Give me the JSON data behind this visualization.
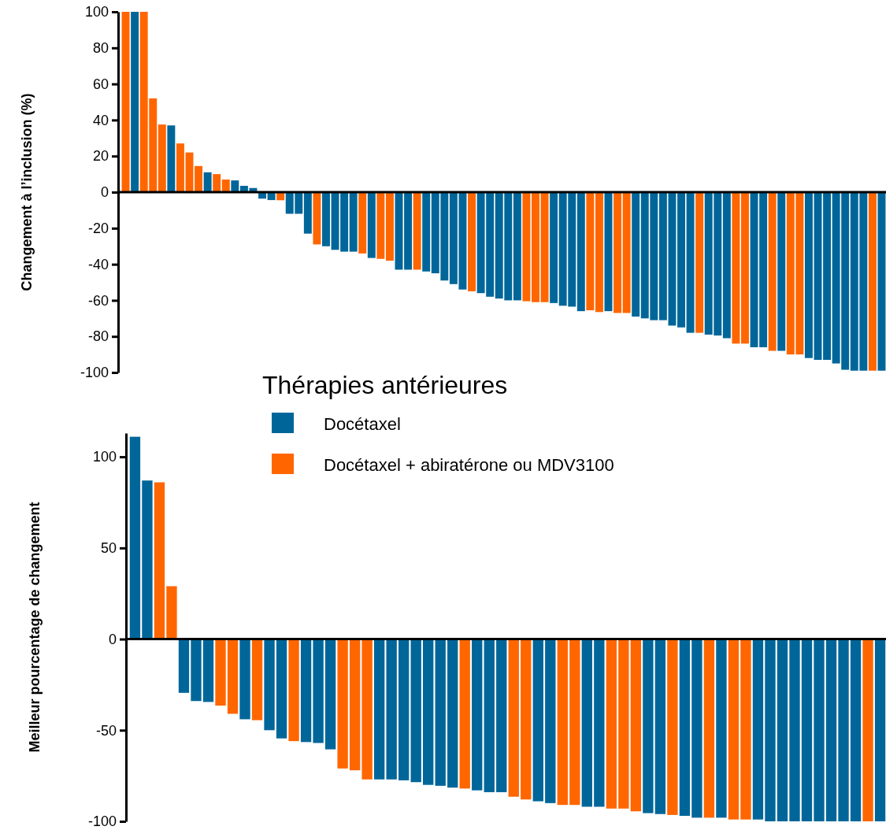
{
  "chart_data": [
    {
      "type": "bar",
      "ylabel": "Changement à l’inclusion (%)",
      "categories": [
        null,
        null,
        null,
        null,
        null,
        null,
        null,
        null,
        null,
        null,
        null,
        null,
        null,
        null,
        null,
        null,
        null,
        null,
        null,
        null,
        null,
        null,
        null,
        null,
        null,
        null,
        null,
        null,
        null,
        null,
        null,
        null,
        null,
        null,
        null,
        null,
        null,
        null,
        null,
        null,
        null,
        null,
        null,
        null,
        null,
        null,
        null,
        null,
        null,
        null,
        null,
        null,
        null,
        null,
        null,
        null,
        null,
        null,
        null,
        null,
        null,
        null,
        null,
        null,
        null,
        null,
        null,
        null,
        null,
        null,
        null,
        null,
        null,
        null,
        null,
        null,
        null,
        null,
        null,
        null,
        null,
        null,
        null,
        null
      ],
      "series": [
        {
          "color": "#006699",
          "values": [
            null,
            100,
            null,
            null,
            null,
            37,
            null,
            null,
            null,
            11,
            null,
            null,
            6.5,
            3.5,
            2.3,
            -3.6,
            -4.4,
            null,
            -12,
            -12,
            -23,
            null,
            -30,
            -32,
            -33,
            -33,
            null,
            -36.5,
            null,
            null,
            -43,
            -43,
            null,
            -44,
            -45,
            -49,
            -51,
            -54,
            null,
            -56,
            -58,
            -59,
            -60,
            -60,
            null,
            null,
            null,
            -61.5,
            -63,
            -63.5,
            -66,
            null,
            null,
            -66,
            null,
            null,
            -69,
            -70,
            -71,
            -71,
            -74,
            -75,
            -78,
            null,
            -79,
            -79.5,
            -81,
            null,
            null,
            -86,
            -86,
            null,
            -88,
            null,
            null,
            -92,
            -93,
            -93,
            -95,
            -98.5,
            -99,
            -99,
            null,
            -99
          ]
        },
        {
          "color": "#ff6600",
          "values": [
            100,
            null,
            100,
            52,
            37.5,
            null,
            27,
            22,
            14.5,
            null,
            10,
            7,
            null,
            null,
            null,
            null,
            null,
            -4.5,
            null,
            null,
            null,
            -29,
            null,
            null,
            null,
            null,
            -34,
            null,
            -37,
            -38,
            null,
            null,
            -43,
            null,
            null,
            null,
            null,
            null,
            -55,
            null,
            null,
            null,
            null,
            null,
            -60.5,
            -61,
            -61,
            null,
            null,
            null,
            null,
            -65.5,
            -66.5,
            null,
            -67,
            -67,
            null,
            null,
            null,
            null,
            null,
            null,
            null,
            -78,
            null,
            null,
            null,
            -84,
            -84,
            null,
            null,
            -88,
            null,
            -90,
            -90,
            null,
            null,
            null,
            null,
            null,
            null,
            null,
            -99,
            null
          ]
        }
      ],
      "ylim": [
        -100,
        100
      ],
      "yticks": [
        100,
        80,
        60,
        40,
        20,
        0,
        -20,
        -40,
        -60,
        -80,
        -100
      ],
      "tick_labels": "y"
    },
    {
      "type": "bar",
      "ylabel": "Meilleur pourcentage de changement",
      "legend_title": "Thérapies antérieures",
      "legend": "top",
      "categories": [
        null,
        null,
        null,
        null,
        null,
        null,
        null,
        null,
        null,
        null,
        null,
        null,
        null,
        null,
        null,
        null,
        null,
        null,
        null,
        null,
        null,
        null,
        null,
        null,
        null,
        null,
        null,
        null,
        null,
        null,
        null,
        null,
        null,
        null,
        null,
        null,
        null,
        null,
        null,
        null,
        null,
        null,
        null,
        null,
        null,
        null,
        null,
        null,
        null,
        null,
        null,
        null,
        null,
        null,
        null,
        null,
        null,
        null,
        null,
        null,
        null,
        null
      ],
      "series": [
        {
          "name": "Docétaxel",
          "color": "#006699",
          "values": [
            111,
            87,
            null,
            null,
            -29.5,
            -34,
            -34.5,
            null,
            null,
            -44,
            null,
            -50,
            -54.5,
            null,
            -56.5,
            -57,
            -60.5,
            null,
            null,
            null,
            -77,
            -77,
            -77.5,
            -78.5,
            -80,
            -80.5,
            -81.5,
            null,
            -83,
            -84,
            -84,
            null,
            null,
            -89,
            -90,
            null,
            null,
            -92,
            -92,
            null,
            null,
            null,
            -95.5,
            -96,
            null,
            -97,
            -98,
            null,
            -98,
            null,
            null,
            -99,
            -100,
            -100,
            -100,
            -100,
            -100,
            -100,
            -100,
            -100,
            null,
            -100
          ]
        },
        {
          "name": "Docétaxel + abiratérone ou MDV3100",
          "color": "#ff6600",
          "values": [
            null,
            null,
            86,
            29,
            null,
            null,
            null,
            -36.5,
            -41,
            null,
            -44.5,
            null,
            null,
            -56,
            null,
            null,
            null,
            -71,
            -72,
            -77,
            null,
            null,
            null,
            null,
            null,
            null,
            null,
            -82,
            null,
            null,
            null,
            -86.5,
            -88,
            null,
            null,
            -91,
            -91,
            null,
            null,
            -93,
            -93,
            -94.5,
            null,
            null,
            -96.5,
            null,
            null,
            -98,
            null,
            -99,
            -99,
            null,
            null,
            null,
            null,
            null,
            null,
            null,
            null,
            null,
            -100,
            null
          ]
        }
      ],
      "ylim": [
        -100,
        113
      ],
      "yticks": [
        100,
        50,
        0,
        -50,
        -100
      ],
      "tick_labels": "y"
    }
  ]
}
